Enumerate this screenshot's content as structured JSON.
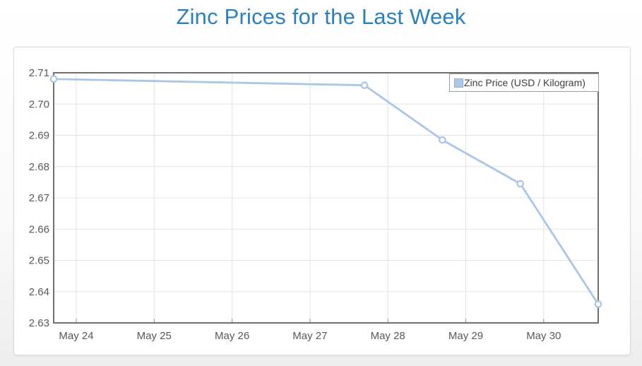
{
  "header": {
    "title": "Zinc Prices for the Last Week"
  },
  "chart_data": {
    "type": "line",
    "title": "Zinc Prices for the Last Week",
    "grid": true,
    "legend_position": "top-right",
    "x_axis": {
      "tick_labels": [
        "May 24",
        "May 25",
        "May 26",
        "May 27",
        "May 28",
        "May 29",
        "May 30"
      ],
      "tick_days": [
        0,
        1,
        2,
        3,
        4,
        5,
        6
      ],
      "domain_days": [
        -0.29,
        6.7
      ]
    },
    "y_axis": {
      "min": 2.63,
      "max": 2.71,
      "tick_step": 0.01,
      "tick_labels": [
        "2.71",
        "2.70",
        "2.69",
        "2.68",
        "2.67",
        "2.66",
        "2.65",
        "2.64",
        "2.63"
      ]
    },
    "series": [
      {
        "name": "Zinc Price (USD / Kilogram)",
        "marker": "open-circle",
        "points": [
          {
            "x_days": -0.29,
            "value": 2.708
          },
          {
            "x_days": 3.7,
            "value": 2.706
          },
          {
            "x_days": 4.7,
            "value": 2.6885
          },
          {
            "x_days": 5.7,
            "value": 2.6745
          },
          {
            "x_days": 6.7,
            "value": 2.636
          }
        ]
      }
    ]
  },
  "colors": {
    "title_text": "#2b81ba",
    "series_line": "#a9c6e8",
    "marker_fill": "#ffffff",
    "grid_line": "#e4e4e4",
    "plot_border": "#6f6f6f",
    "axis_tick": "#8f8f8f",
    "tick_text": "#58585a",
    "legend_border": "#9d9d9d",
    "legend_text": "#3d3d3d",
    "swatch_fill": "#aec6e8",
    "swatch_border": "#94add0"
  }
}
